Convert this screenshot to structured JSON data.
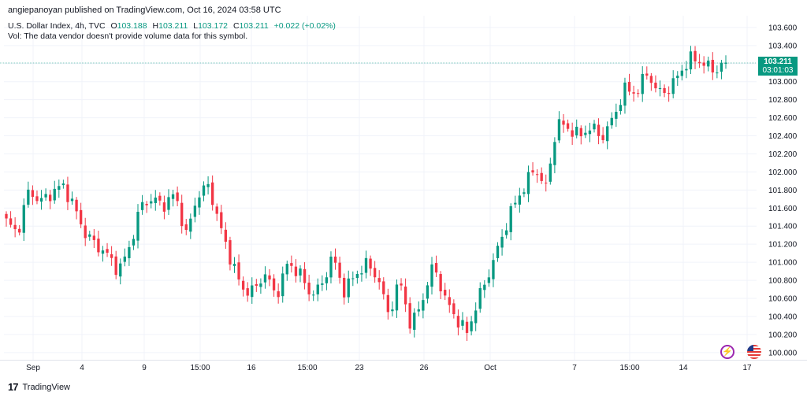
{
  "header": {
    "published": "angiepanoyan published on TradingView.com, Oct 16, 2024 03:58 UTC"
  },
  "legend": {
    "symbol": "U.S. Dollar Index, 4h, TVC",
    "o_label": "O",
    "o_val": "103.188",
    "h_label": "H",
    "h_val": "103.211",
    "l_label": "L",
    "l_val": "103.172",
    "c_label": "C",
    "c_val": "103.211",
    "change": "+0.022 (+0.02%)",
    "vol_note": "Vol: The data vendor doesn't provide volume data for this symbol."
  },
  "price_tag": {
    "price": "103.211",
    "countdown": "03:01:03"
  },
  "footer": {
    "brand": "TradingView"
  },
  "icons": [
    "tradingview-logo-icon",
    "lightning-icon",
    "us-flag-icon"
  ],
  "colors": {
    "up": "#089981",
    "down": "#f23645",
    "last_line": "#089981"
  },
  "chart_data": {
    "type": "candlestick",
    "title": "U.S. Dollar Index, 4h, TVC",
    "y_ticks": [
      "100.000",
      "100.200",
      "100.400",
      "100.600",
      "100.800",
      "101.000",
      "101.200",
      "101.400",
      "101.600",
      "101.800",
      "102.000",
      "102.200",
      "102.400",
      "102.600",
      "102.800",
      "103.000",
      "103.200",
      "103.400",
      "103.600"
    ],
    "x_ticks": [
      "Sep",
      "4",
      "9",
      "15:00",
      "16",
      "15:00",
      "23",
      "26",
      "Oct",
      "7",
      "15:00",
      "14",
      "17"
    ],
    "ylim": [
      99.92,
      103.73
    ],
    "last_price": 103.211,
    "close_anchors": [
      101.45,
      101.32,
      101.8,
      101.67,
      101.76,
      101.86,
      101.62,
      101.32,
      101.19,
      101.08,
      100.9,
      101.18,
      101.64,
      101.7,
      101.63,
      101.76,
      101.3,
      101.74,
      101.85,
      101.4,
      101.02,
      100.7,
      100.68,
      100.88,
      100.62,
      100.98,
      100.9,
      100.65,
      100.72,
      101.08,
      100.68,
      100.85,
      100.98,
      100.85,
      100.42,
      100.8,
      100.28,
      100.58,
      100.98,
      100.6,
      100.38,
      100.22,
      100.6,
      100.9,
      101.25,
      101.6,
      101.82,
      102.05,
      101.82,
      102.55,
      102.48,
      102.4,
      102.5,
      102.38,
      102.6,
      102.92,
      102.87,
      103.1,
      102.87,
      102.92,
      103.12,
      103.27,
      103.2,
      103.12,
      103.211
    ]
  }
}
